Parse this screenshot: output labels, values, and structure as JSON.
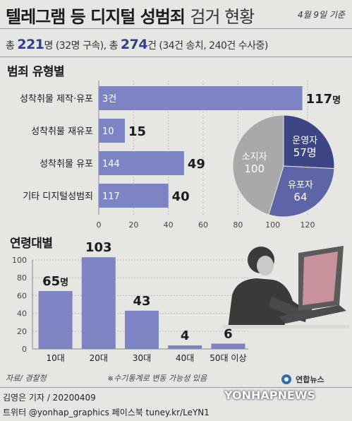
{
  "header": {
    "title_bold": "텔레그램 등 디지털 성범죄",
    "title_light": "검거 현황",
    "date": "4월 9일 기준"
  },
  "summary": {
    "p1": "총 ",
    "total": "221",
    "p2": "명 (32명 구속), 총 ",
    "cases": "274",
    "p3": "건 (34건 송치, 240건 수사중)"
  },
  "section_type": "범죄 유형별",
  "section_age": "연령대별",
  "chart_data": [
    {
      "type": "bar",
      "orientation": "horizontal",
      "title": "범죄 유형별",
      "categories": [
        "성착취물 제작·유포",
        "성착취물 재유포",
        "성착취물 유포",
        "기타 디지털성범죄"
      ],
      "values": [
        117,
        15,
        49,
        40
      ],
      "inside_labels": [
        "3건",
        "10",
        "144",
        "117"
      ],
      "value_labels": [
        "117명",
        "15",
        "49",
        "40"
      ],
      "x_ticks": [
        "0",
        "20",
        "40",
        "60",
        "80",
        "100",
        "120"
      ],
      "xlim": [
        0,
        120
      ],
      "bar_color": "#7c84c4"
    },
    {
      "type": "pie",
      "slices": [
        {
          "label": "운영자",
          "value": 57,
          "value_label": "57명",
          "color": "#3d4584"
        },
        {
          "label": "유포자",
          "value": 64,
          "value_label": "64",
          "color": "#5d65a6"
        },
        {
          "label": "소지자",
          "value": 100,
          "value_label": "100",
          "color": "#a9a9a9"
        }
      ]
    },
    {
      "type": "bar",
      "orientation": "vertical",
      "title": "연령대별",
      "categories": [
        "10대",
        "20대",
        "30대",
        "40대",
        "50대 이상"
      ],
      "values": [
        65,
        103,
        43,
        4,
        6
      ],
      "value_labels": [
        "65명",
        "103",
        "43",
        "4",
        "6"
      ],
      "y_ticks": [
        "0",
        "20",
        "40",
        "60",
        "80",
        "100"
      ],
      "ylim": [
        0,
        100
      ],
      "bar_color": "#7c84c4",
      "note": "※수기통계로 변동 가능성 있음"
    }
  ],
  "footer": {
    "source": "자료/ 경찰청",
    "reporter": "김영은 기자 / 20200409",
    "sns": "트위터 @yonhap_graphics  페이스북 tuney.kr/LeYN1",
    "logo": "연합뉴스",
    "watermark": "YONHAPNEWS"
  }
}
